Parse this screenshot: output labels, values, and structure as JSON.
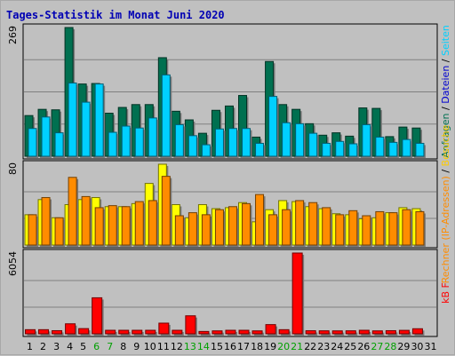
{
  "chart_data": {
    "type": "bar",
    "title": "Tages-Statistik im Monat Juni 2020",
    "categories": [
      "1",
      "2",
      "3",
      "4",
      "5",
      "6",
      "7",
      "8",
      "9",
      "10",
      "11",
      "12",
      "13",
      "14",
      "15",
      "16",
      "17",
      "18",
      "19",
      "20",
      "21",
      "22",
      "23",
      "24",
      "25",
      "26",
      "27",
      "28",
      "29",
      "30",
      "31"
    ],
    "weekend_days": [
      "6",
      "7",
      "13",
      "14",
      "20",
      "21",
      "27",
      "28"
    ],
    "colors": {
      "anfragen": "#007050",
      "dateien": "#00d0ff",
      "rechner": "#ff8c00",
      "besuche": "#ffcc00",
      "kb": "#ff0000",
      "weekday_label": "#000000",
      "weekend_label": "#00a000",
      "title": "#0000b4"
    },
    "panels": [
      {
        "id": "top",
        "ymax_label": "269",
        "ymax": 269,
        "right_label_parts": [
          {
            "text": "Anfragen",
            "color": "#007050"
          },
          {
            "text": " / ",
            "color": "#000000"
          },
          {
            "text": "Dateien",
            "color": "#0000d0"
          },
          {
            "text": " / ",
            "color": "#000000"
          },
          {
            "text": "Seiten",
            "color": "#00d0ff"
          }
        ],
        "series": [
          {
            "name": "Anfragen",
            "color": "#007050",
            "values": [
              85,
              98,
              97,
              269,
              151,
              152,
              90,
              102,
              108,
              108,
              206,
              94,
              76,
              48,
              96,
              105,
              127,
              40,
              198,
              108,
              98,
              68,
              44,
              49,
              42,
              101,
              100,
              41,
              61,
              59,
              0
            ]
          },
          {
            "name": "Dateien",
            "color": "#00d0ff",
            "values": [
              58,
              82,
              49,
              153,
              113,
              151,
              50,
              63,
              59,
              80,
              170,
              66,
              43,
              24,
              57,
              58,
              58,
              27,
              125,
              70,
              68,
              48,
              27,
              31,
              26,
              66,
              40,
              29,
              35,
              27,
              0
            ]
          },
          {
            "name": "Seiten",
            "color": "#0000d0",
            "values": [
              0,
              0,
              0,
              0,
              0,
              0,
              0,
              0,
              0,
              0,
              0,
              0,
              0,
              0,
              0,
              0,
              0,
              0,
              0,
              0,
              0,
              0,
              0,
              0,
              0,
              0,
              0,
              0,
              0,
              0,
              0
            ]
          }
        ]
      },
      {
        "id": "mid",
        "ymax_label": "80",
        "ymax": 80,
        "right_label_parts": [
          {
            "text": "Rechner (IP-Adressen)",
            "color": "#ff8c00"
          },
          {
            "text": " / ",
            "color": "#000000"
          },
          {
            "text": "Besuche",
            "color": "#ffcc00"
          }
        ],
        "series": [
          {
            "name": "Besuche",
            "color": "#ffff00",
            "values": [
              30,
              45,
              27,
              40,
              45,
              47,
              38,
              38,
              41,
              61,
              80,
              40,
              27,
              40,
              36,
              37,
              42,
              23,
              35,
              44,
              43,
              38,
              36,
              31,
              30,
              26,
              27,
              32,
              37,
              36,
              0
            ]
          },
          {
            "name": "Rechner",
            "color": "#ff8c00",
            "values": [
              30,
              47,
              27,
              67,
              48,
              37,
              39,
              38,
              43,
              44,
              68,
              29,
              32,
              30,
              35,
              38,
              41,
              50,
              30,
              35,
              44,
              42,
              37,
              30,
              34,
              29,
              33,
              32,
              35,
              33,
              0
            ]
          }
        ]
      },
      {
        "id": "bot",
        "ymax_label": "6054",
        "ymax": 6054,
        "right_label_parts": [
          {
            "text": "kB F",
            "color": "#ff0000"
          }
        ],
        "series": [
          {
            "name": "kB F",
            "color": "#ff0000",
            "values": [
              310,
              310,
              235,
              750,
              390,
              2700,
              265,
              265,
              265,
              265,
              800,
              265,
              1350,
              175,
              220,
              265,
              265,
              220,
              690,
              310,
              6054,
              230,
              225,
              220,
              225,
              265,
              220,
              235,
              260,
              380,
              0
            ]
          }
        ]
      }
    ]
  }
}
